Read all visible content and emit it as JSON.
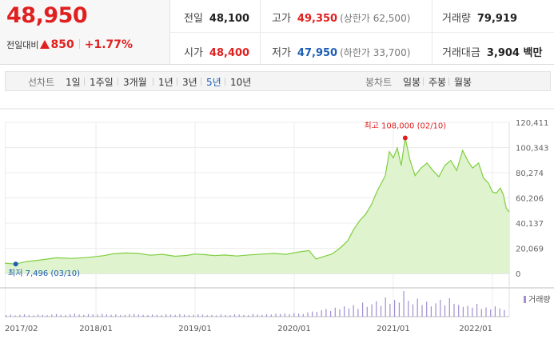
{
  "quote": {
    "price": "48,950",
    "change_label": "전일대비",
    "change_amount": "850",
    "change_percent": "+1.77%",
    "prev_close": {
      "label": "전일",
      "value": "48,100"
    },
    "high": {
      "label": "고가",
      "value": "49,350",
      "limit": "(상한가 62,500)"
    },
    "volume": {
      "label": "거래량",
      "value": "79,919"
    },
    "open": {
      "label": "시가",
      "value": "48,400"
    },
    "low": {
      "label": "저가",
      "value": "47,950",
      "limit": "(하한가 33,700)"
    },
    "trade_value": {
      "label": "거래대금",
      "value": "3,904 백만"
    },
    "up_color": "#e02020",
    "down_color": "#1e5eb4"
  },
  "periods": {
    "line_label": "선차트",
    "line_items": [
      "1일",
      "1주일",
      "3개월",
      "1년",
      "3년",
      "5년",
      "10년"
    ],
    "active": "5년",
    "candle_label": "봉차트",
    "candle_items": [
      "일봉",
      "주봉",
      "월봉"
    ]
  },
  "chart_data": {
    "type": "area",
    "y_ticks": [
      "120,411",
      "100,343",
      "80,274",
      "60,206",
      "40,137",
      "20,069",
      "0"
    ],
    "ylim": [
      0,
      120411
    ],
    "x_ticks": [
      "2017/02",
      "2018/01",
      "2019/01",
      "2020/01",
      "2021/01",
      "2022/01"
    ],
    "xlim": [
      2017.08,
      2022.17
    ],
    "annotation_high": "최고 108,000 (02/10)",
    "annotation_low": "최저 7,496 (03/10)",
    "volume_legend": "거래량",
    "line_color": "#7fcf3f",
    "fill_color": "#dff3cf",
    "series": [
      {
        "values": [
          [
            2017.08,
            8200
          ],
          [
            2017.19,
            7496
          ],
          [
            2017.3,
            9500
          ],
          [
            2017.45,
            10800
          ],
          [
            2017.6,
            12500
          ],
          [
            2017.75,
            12000
          ],
          [
            2017.9,
            12600
          ],
          [
            2018.0,
            13500
          ],
          [
            2018.08,
            14200
          ],
          [
            2018.17,
            15600
          ],
          [
            2018.3,
            16300
          ],
          [
            2018.42,
            16000
          ],
          [
            2018.55,
            14500
          ],
          [
            2018.67,
            15200
          ],
          [
            2018.8,
            13700
          ],
          [
            2018.92,
            14400
          ],
          [
            2019.0,
            15500
          ],
          [
            2019.1,
            15000
          ],
          [
            2019.2,
            14200
          ],
          [
            2019.3,
            14700
          ],
          [
            2019.42,
            13900
          ],
          [
            2019.55,
            14800
          ],
          [
            2019.67,
            15400
          ],
          [
            2019.8,
            15900
          ],
          [
            2019.92,
            15200
          ],
          [
            2020.0,
            16500
          ],
          [
            2020.08,
            17500
          ],
          [
            2020.15,
            18200
          ],
          [
            2020.22,
            11500
          ],
          [
            2020.3,
            13500
          ],
          [
            2020.38,
            15500
          ],
          [
            2020.46,
            20000
          ],
          [
            2020.54,
            26000
          ],
          [
            2020.6,
            35000
          ],
          [
            2020.66,
            42000
          ],
          [
            2020.72,
            47000
          ],
          [
            2020.78,
            55000
          ],
          [
            2020.84,
            66000
          ],
          [
            2020.88,
            72000
          ],
          [
            2020.92,
            78000
          ],
          [
            2020.96,
            97000
          ],
          [
            2021.0,
            92000
          ],
          [
            2021.04,
            100000
          ],
          [
            2021.08,
            86000
          ],
          [
            2021.12,
            108000
          ],
          [
            2021.17,
            90000
          ],
          [
            2021.22,
            78000
          ],
          [
            2021.28,
            84000
          ],
          [
            2021.34,
            88000
          ],
          [
            2021.4,
            82000
          ],
          [
            2021.46,
            77000
          ],
          [
            2021.52,
            86000
          ],
          [
            2021.58,
            90000
          ],
          [
            2021.64,
            82000
          ],
          [
            2021.7,
            98000
          ],
          [
            2021.75,
            90000
          ],
          [
            2021.8,
            84000
          ],
          [
            2021.86,
            88000
          ],
          [
            2021.91,
            76000
          ],
          [
            2021.96,
            72000
          ],
          [
            2022.0,
            65000
          ],
          [
            2022.04,
            64000
          ],
          [
            2022.08,
            68000
          ],
          [
            2022.11,
            63000
          ],
          [
            2022.14,
            52000
          ],
          [
            2022.17,
            48950
          ]
        ]
      }
    ],
    "volume_relative": [
      0.06,
      0.08,
      0.05,
      0.07,
      0.09,
      0.06,
      0.05,
      0.08,
      0.07,
      0.06,
      0.08,
      0.1,
      0.07,
      0.06,
      0.09,
      0.12,
      0.08,
      0.07,
      0.1,
      0.09,
      0.08,
      0.11,
      0.09,
      0.07,
      0.08,
      0.06,
      0.07,
      0.09,
      0.1,
      0.08,
      0.07,
      0.06,
      0.08,
      0.07,
      0.06,
      0.09,
      0.08,
      0.07,
      0.1,
      0.08,
      0.06,
      0.07,
      0.09,
      0.08,
      0.06,
      0.07,
      0.05,
      0.08,
      0.07,
      0.06,
      0.09,
      0.08,
      0.07,
      0.06,
      0.1,
      0.08,
      0.07,
      0.09,
      0.08,
      0.11,
      0.1,
      0.12,
      0.09,
      0.14,
      0.12,
      0.1,
      0.16,
      0.2,
      0.18,
      0.25,
      0.3,
      0.22,
      0.35,
      0.28,
      0.4,
      0.32,
      0.45,
      0.3,
      0.55,
      0.38,
      0.48,
      0.6,
      0.42,
      0.75,
      0.5,
      0.65,
      0.55,
      1.0,
      0.62,
      0.48,
      0.7,
      0.45,
      0.58,
      0.4,
      0.52,
      0.66,
      0.44,
      0.72,
      0.5,
      0.46,
      0.38,
      0.42,
      0.35,
      0.5,
      0.3,
      0.36,
      0.28,
      0.4,
      0.32,
      0.26
    ]
  }
}
